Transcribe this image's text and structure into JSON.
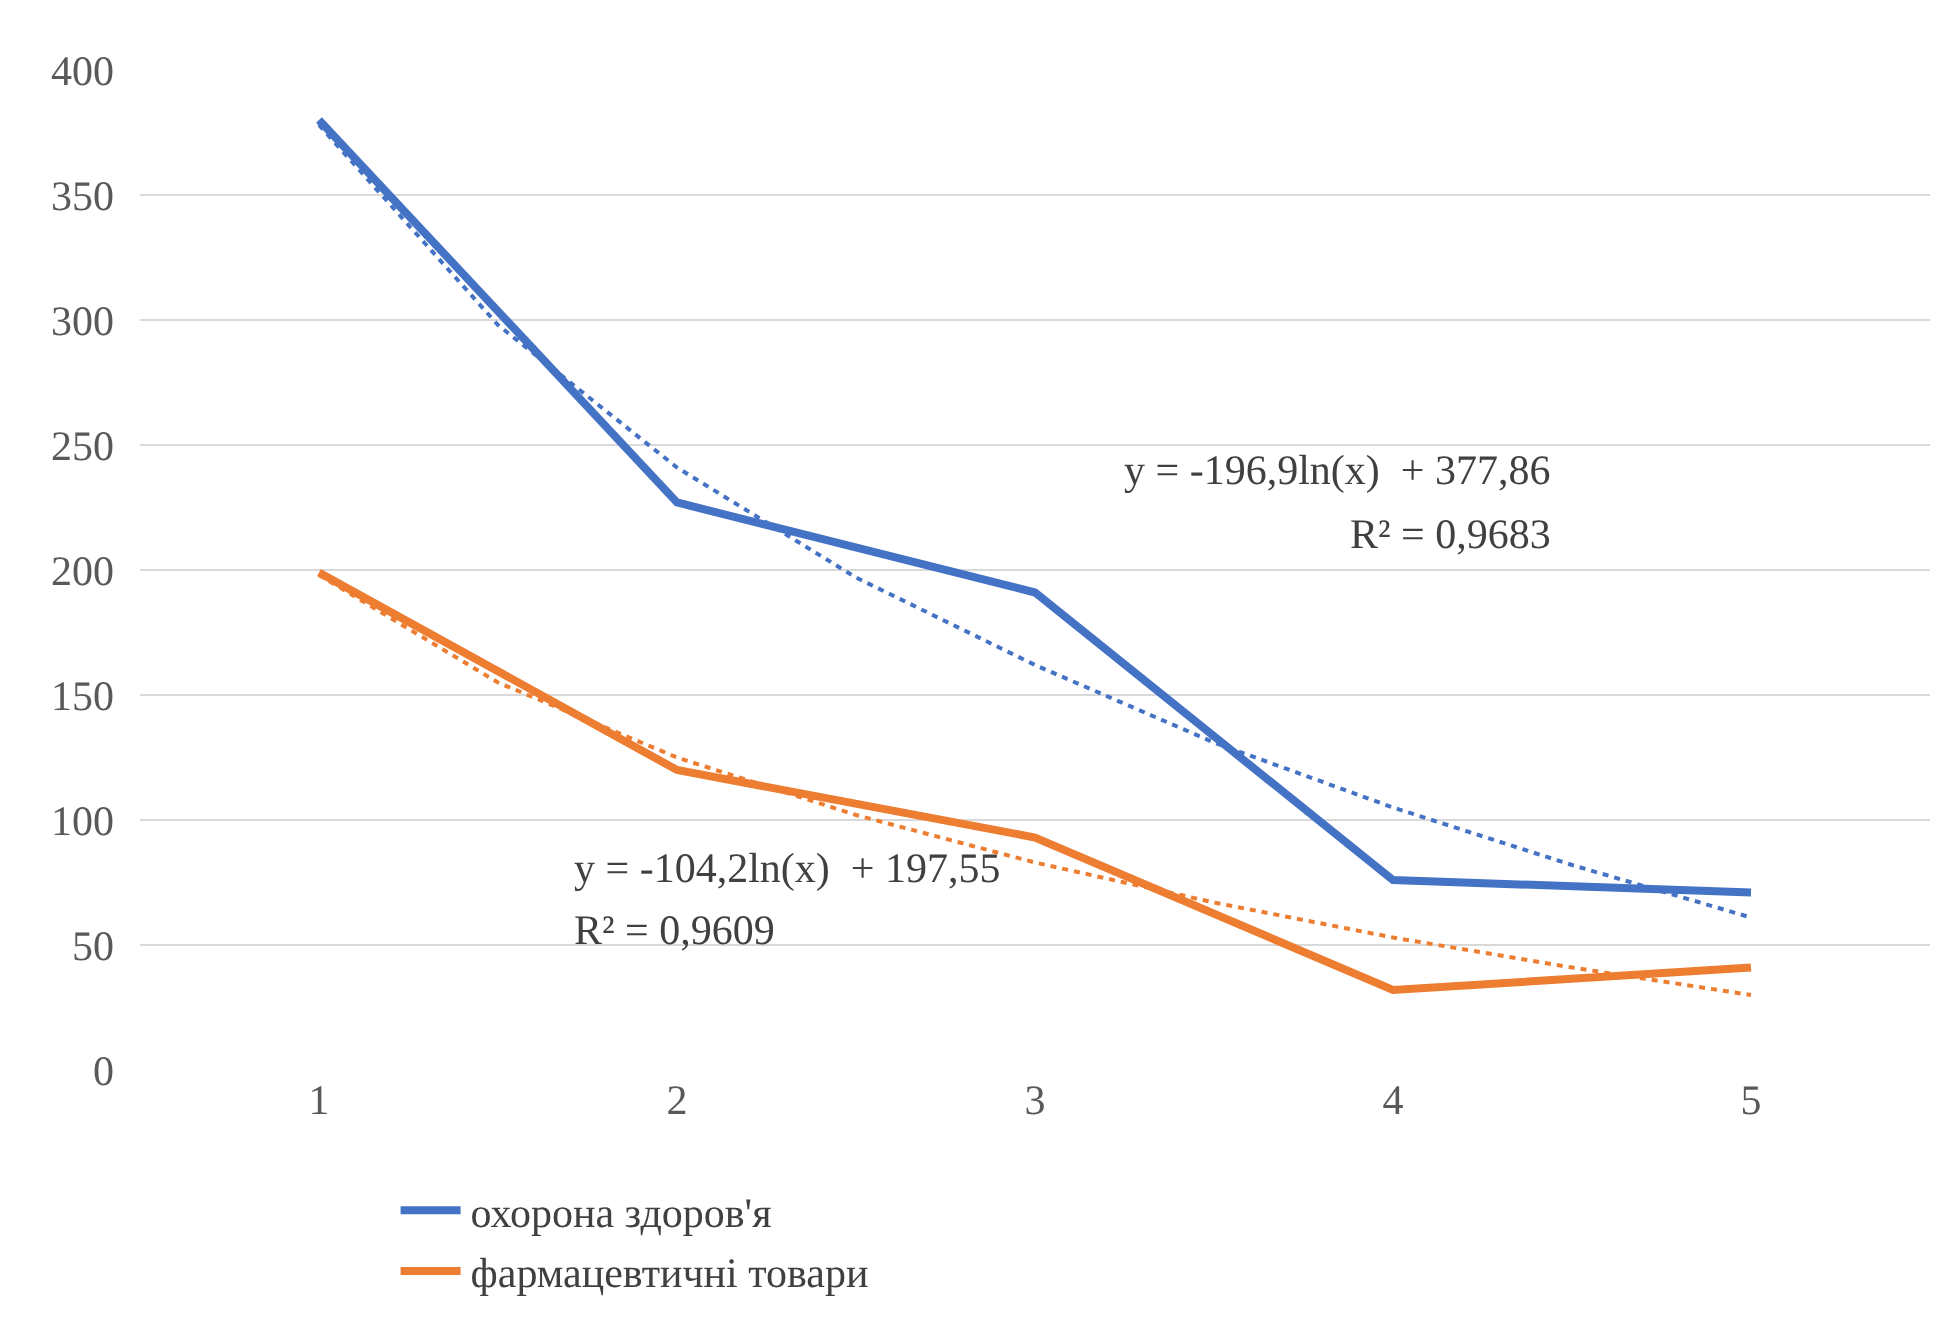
{
  "chart_data": {
    "type": "line",
    "x": [
      1,
      2,
      3,
      4,
      5
    ],
    "series": [
      {
        "name": "охорона здоров'я",
        "color": "#4472c4",
        "values": [
          380,
          227,
          191,
          76,
          71
        ]
      },
      {
        "name": "фармацевтичні товари",
        "color": "#ed7d31",
        "values": [
          199,
          120,
          93,
          32,
          41
        ]
      },
      {
        "type": "line",
        "line_style": "dotted",
        "color": "#4472c4",
        "x": [
          1,
          1.5,
          2,
          2.5,
          3,
          3.5,
          4,
          4.5,
          5
        ],
        "values": [
          378,
          298,
          241,
          197,
          162,
          131,
          105,
          82,
          61
        ]
      },
      {
        "type": "line",
        "line_style": "dotted",
        "color": "#ed7d31",
        "x": [
          1,
          1.5,
          2,
          2.5,
          3,
          3.5,
          4,
          4.5,
          5
        ],
        "values": [
          198,
          155,
          125,
          102,
          83,
          67,
          53,
          41,
          30
        ]
      }
    ],
    "xlim": [
      0.5,
      5.5
    ],
    "xticks": [
      1,
      2,
      3,
      4,
      5
    ],
    "ylim": [
      0,
      400
    ],
    "yticks": [
      0,
      50,
      100,
      150,
      200,
      250,
      300,
      350,
      400
    ],
    "grid": "y",
    "legend": "bottom left",
    "marker": "none",
    "line_style": "solid",
    "annotations": [
      "y = -196,9ln(x)  + 377,86",
      "R² = 0,9683",
      "y = -104,2ln(x)  + 197,55",
      "R² = 0,9609"
    ]
  }
}
